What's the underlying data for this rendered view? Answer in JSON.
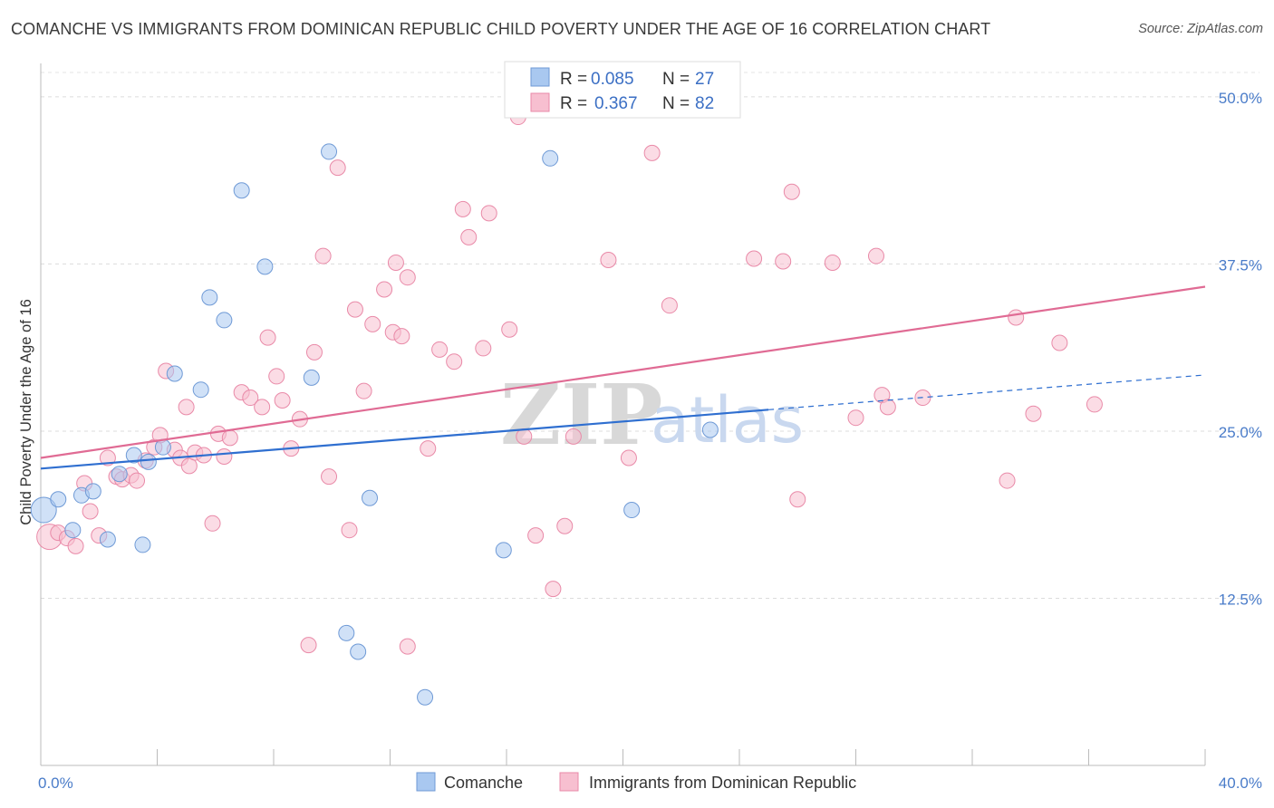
{
  "title": "COMANCHE VS IMMIGRANTS FROM DOMINICAN REPUBLIC CHILD POVERTY UNDER THE AGE OF 16 CORRELATION CHART",
  "source": "Source: ZipAtlas.com",
  "watermark": {
    "zip": "ZIP",
    "atlas": "atlas"
  },
  "legend_top": {
    "r_label": "R =",
    "n_label": "N =",
    "rows": [
      {
        "r": "0.085",
        "n": "27"
      },
      {
        "r": "0.367",
        "n": "82"
      }
    ]
  },
  "chart_data": {
    "type": "scatter",
    "title": "COMANCHE VS IMMIGRANTS FROM DOMINICAN REPUBLIC CHILD POVERTY UNDER THE AGE OF 16 CORRELATION CHART",
    "xlabel": "",
    "ylabel": "Child Poverty Under the Age of 16",
    "xlim": [
      0,
      40
    ],
    "ylim": [
      0,
      52.5
    ],
    "x_tick_labels": [
      {
        "value": 0,
        "label": "0.0%"
      },
      {
        "value": 40,
        "label": "40.0%"
      }
    ],
    "y_tick_labels": [
      {
        "value": 12.5,
        "label": "12.5%"
      },
      {
        "value": 25,
        "label": "25.0%"
      },
      {
        "value": 37.5,
        "label": "37.5%"
      },
      {
        "value": 50,
        "label": "50.0%"
      }
    ],
    "grid": true,
    "legend_position": "top-center",
    "series": [
      {
        "name": "Comanche",
        "color": "#a9c8f0",
        "stroke": "#6f9ad6",
        "trend_color": "#2f6fd0",
        "trend": {
          "x0": 0,
          "y0": 22.2,
          "x1": 25,
          "y1": 26.6,
          "dash_x1": 40,
          "dash_y1": 29.2
        },
        "points": [
          [
            0.1,
            19.1
          ],
          [
            0.6,
            19.9
          ],
          [
            1.1,
            17.6
          ],
          [
            1.4,
            20.2
          ],
          [
            1.8,
            20.5
          ],
          [
            2.3,
            16.9
          ],
          [
            3.2,
            23.2
          ],
          [
            2.7,
            21.8
          ],
          [
            3.5,
            16.5
          ],
          [
            3.7,
            22.7
          ],
          [
            4.2,
            23.8
          ],
          [
            4.6,
            29.3
          ],
          [
            5.5,
            28.1
          ],
          [
            5.8,
            35.0
          ],
          [
            6.3,
            33.3
          ],
          [
            6.9,
            43.0
          ],
          [
            7.7,
            37.3
          ],
          [
            9.3,
            29.0
          ],
          [
            9.9,
            45.9
          ],
          [
            10.5,
            9.9
          ],
          [
            10.9,
            8.5
          ],
          [
            11.3,
            20.0
          ],
          [
            13.2,
            5.1
          ],
          [
            15.9,
            16.1
          ],
          [
            17.5,
            45.4
          ],
          [
            20.3,
            19.1
          ],
          [
            23.0,
            25.1
          ]
        ]
      },
      {
        "name": "Immigrants from Dominican Republic",
        "color": "#f7bfd0",
        "stroke": "#e98aa8",
        "trend_color": "#e06b94",
        "trend": {
          "x0": 0,
          "y0": 23.0,
          "x1": 40,
          "y1": 35.8
        },
        "points": [
          [
            0.3,
            17.1
          ],
          [
            0.6,
            17.4
          ],
          [
            0.9,
            17.0
          ],
          [
            1.2,
            16.4
          ],
          [
            1.5,
            21.1
          ],
          [
            1.7,
            19.0
          ],
          [
            2.0,
            17.2
          ],
          [
            2.3,
            23.0
          ],
          [
            2.6,
            21.6
          ],
          [
            2.8,
            21.4
          ],
          [
            3.1,
            21.7
          ],
          [
            3.3,
            21.3
          ],
          [
            3.6,
            22.8
          ],
          [
            3.9,
            23.8
          ],
          [
            4.1,
            24.7
          ],
          [
            4.3,
            29.5
          ],
          [
            4.6,
            23.6
          ],
          [
            4.8,
            23.0
          ],
          [
            5.1,
            22.4
          ],
          [
            5.3,
            23.4
          ],
          [
            5.6,
            23.2
          ],
          [
            5.9,
            18.1
          ],
          [
            6.1,
            24.8
          ],
          [
            6.3,
            23.1
          ],
          [
            6.5,
            24.5
          ],
          [
            6.9,
            27.9
          ],
          [
            7.2,
            27.5
          ],
          [
            7.6,
            26.8
          ],
          [
            7.8,
            32.0
          ],
          [
            8.1,
            29.1
          ],
          [
            8.3,
            27.3
          ],
          [
            8.6,
            23.7
          ],
          [
            8.9,
            25.9
          ],
          [
            9.4,
            30.9
          ],
          [
            9.7,
            38.1
          ],
          [
            9.9,
            21.6
          ],
          [
            10.2,
            44.7
          ],
          [
            10.6,
            17.6
          ],
          [
            10.8,
            34.1
          ],
          [
            11.1,
            28.0
          ],
          [
            11.4,
            33.0
          ],
          [
            11.8,
            35.6
          ],
          [
            12.1,
            32.4
          ],
          [
            12.2,
            37.6
          ],
          [
            12.4,
            32.1
          ],
          [
            12.6,
            36.5
          ],
          [
            13.3,
            23.7
          ],
          [
            13.7,
            31.1
          ],
          [
            14.2,
            30.2
          ],
          [
            14.5,
            41.6
          ],
          [
            14.7,
            39.5
          ],
          [
            15.2,
            31.2
          ],
          [
            15.4,
            41.3
          ],
          [
            16.1,
            32.6
          ],
          [
            16.6,
            24.6
          ],
          [
            17.0,
            17.2
          ],
          [
            17.6,
            13.2
          ],
          [
            18.0,
            17.9
          ],
          [
            18.3,
            24.6
          ],
          [
            9.2,
            9.0
          ],
          [
            12.6,
            8.9
          ],
          [
            19.5,
            37.8
          ],
          [
            20.2,
            23.0
          ],
          [
            21.0,
            45.8
          ],
          [
            21.6,
            34.4
          ],
          [
            24.5,
            37.9
          ],
          [
            25.5,
            37.7
          ],
          [
            25.8,
            42.9
          ],
          [
            26.0,
            19.9
          ],
          [
            27.2,
            37.6
          ],
          [
            28.0,
            26.0
          ],
          [
            28.7,
            38.1
          ],
          [
            28.9,
            27.7
          ],
          [
            29.1,
            26.8
          ],
          [
            30.3,
            27.5
          ],
          [
            33.2,
            21.3
          ],
          [
            33.5,
            33.5
          ],
          [
            34.1,
            26.3
          ],
          [
            35.0,
            31.6
          ],
          [
            36.2,
            27.0
          ],
          [
            16.4,
            48.5
          ],
          [
            5.0,
            26.8
          ]
        ]
      }
    ]
  },
  "bottom_legend": [
    {
      "label": "Comanche"
    },
    {
      "label": "Immigrants from Dominican Republic"
    }
  ]
}
